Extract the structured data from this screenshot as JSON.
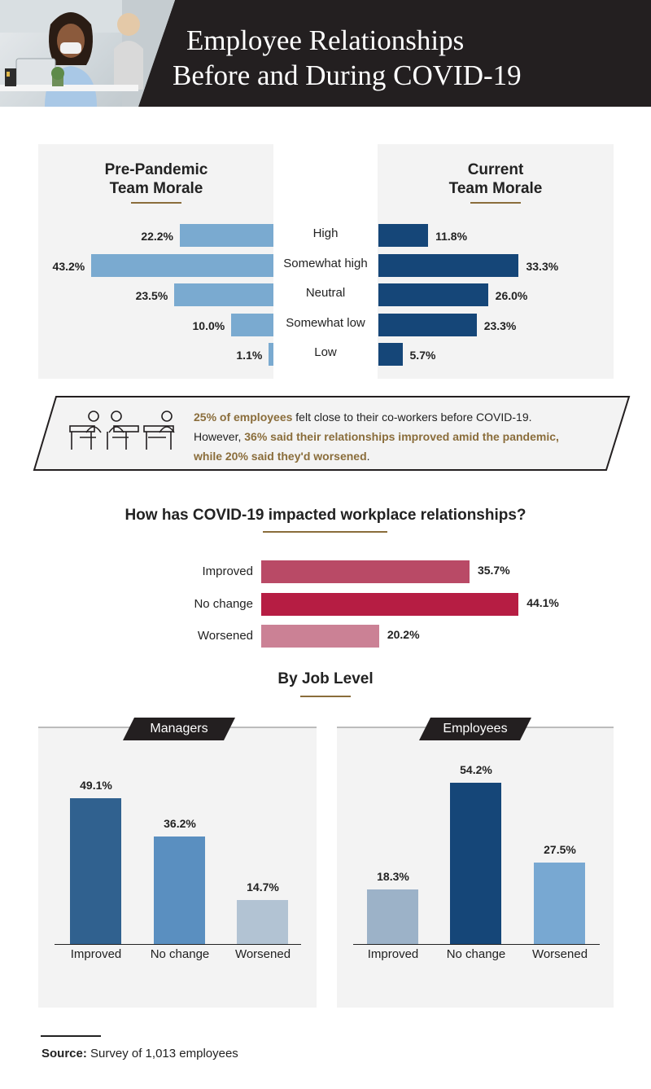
{
  "header": {
    "title_line1": "Employee Relationships",
    "title_line2": "Before and During COVID-19"
  },
  "morale": {
    "pre_title_line1": "Pre-Pandemic",
    "pre_title_line2": "Team Morale",
    "cur_title_line1": "Current",
    "cur_title_line2": "Team Morale"
  },
  "callout": {
    "p1_hl": "25% of employees",
    "p1_rest": " felt close to their co-workers before COVID-19.",
    "p2_pre": "However, ",
    "p2_hl": "36% said their relationships improved amid the pandemic,",
    "p3_hl": "while 20% said they'd worsened",
    "p3_rest": "."
  },
  "impact": {
    "title": "How has COVID-19 impacted workplace relationships?"
  },
  "job_level": {
    "title": "By Job Level",
    "managers_tag": "Managers",
    "employees_tag": "Employees"
  },
  "source": {
    "label": "Source:",
    "text": " Survey of 1,013 employees"
  },
  "colors": {
    "pre_bar": "#7aaad0",
    "cur_bar": "#154678",
    "improved": "#b94a66",
    "no_change": "#b61d43",
    "worsened": "#cb8195",
    "gold": "#8a6d3b"
  },
  "chart_data": [
    {
      "type": "bar",
      "orientation": "horizontal",
      "title": "Pre-Pandemic Team Morale",
      "categories": [
        "High",
        "Somewhat high",
        "Neutral",
        "Somewhat low",
        "Low"
      ],
      "values": [
        22.2,
        43.2,
        23.5,
        10.0,
        1.1
      ],
      "labels": [
        "22.2%",
        "43.2%",
        "23.5%",
        "10.0%",
        "1.1%"
      ]
    },
    {
      "type": "bar",
      "orientation": "horizontal",
      "title": "Current Team Morale",
      "categories": [
        "High",
        "Somewhat high",
        "Neutral",
        "Somewhat low",
        "Low"
      ],
      "values": [
        11.8,
        33.3,
        26.0,
        23.3,
        5.7
      ],
      "labels": [
        "11.8%",
        "33.3%",
        "26.0%",
        "23.3%",
        "5.7%"
      ]
    },
    {
      "type": "bar",
      "orientation": "horizontal",
      "title": "How has COVID-19 impacted workplace relationships?",
      "categories": [
        "Improved",
        "No change",
        "Worsened"
      ],
      "values": [
        35.7,
        44.1,
        20.2
      ],
      "labels": [
        "35.7%",
        "44.1%",
        "20.2%"
      ]
    },
    {
      "type": "bar",
      "title": "Managers",
      "categories": [
        "Improved",
        "No change",
        "Worsened"
      ],
      "values": [
        49.1,
        36.2,
        14.7
      ],
      "labels": [
        "49.1%",
        "36.2%",
        "14.7%"
      ],
      "colors": [
        "#30618f",
        "#5a8fc0",
        "#b2c3d3"
      ]
    },
    {
      "type": "bar",
      "title": "Employees",
      "categories": [
        "Improved",
        "No change",
        "Worsened"
      ],
      "values": [
        18.3,
        54.2,
        27.5
      ],
      "labels": [
        "18.3%",
        "54.2%",
        "27.5%"
      ],
      "colors": [
        "#9cb2c8",
        "#154678",
        "#78a8d2"
      ]
    }
  ]
}
